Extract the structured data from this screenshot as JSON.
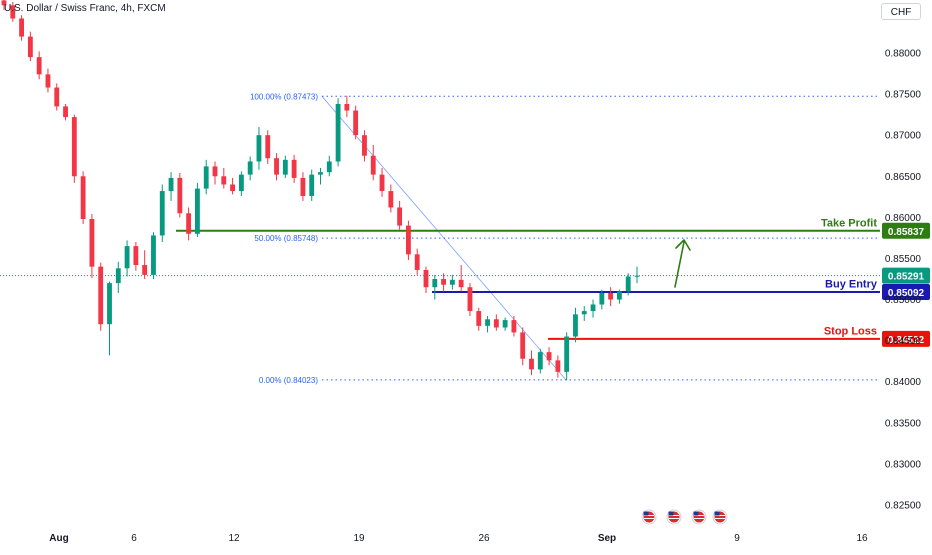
{
  "header": {
    "symbol_title": "U.S. Dollar / Swiss Franc, 4h, FXCM",
    "currency_button": "CHF"
  },
  "chart_data": {
    "type": "candlestick",
    "y_axis_ticks": [
      "0.88000",
      "0.87500",
      "0.87000",
      "0.86500",
      "0.86000",
      "0.85500",
      "0.85000",
      "0.84500",
      "0.84000",
      "0.83500",
      "0.83000",
      "0.82500"
    ],
    "x_axis_ticks": [
      "Aug",
      "6",
      "12",
      "19",
      "26",
      "Sep",
      "9",
      "16"
    ],
    "ylim": [
      0.824,
      0.8866
    ],
    "colors": {
      "up": "#089981",
      "down": "#f23645"
    },
    "candles": [
      [
        0.8864,
        0.8871,
        0.8852,
        0.8858
      ],
      [
        0.8858,
        0.8862,
        0.8838,
        0.8842
      ],
      [
        0.8842,
        0.8846,
        0.8815,
        0.882
      ],
      [
        0.882,
        0.8826,
        0.879,
        0.8795
      ],
      [
        0.8795,
        0.8802,
        0.8768,
        0.8774
      ],
      [
        0.8774,
        0.8781,
        0.8752,
        0.8758
      ],
      [
        0.8758,
        0.8763,
        0.873,
        0.8735
      ],
      [
        0.8735,
        0.8738,
        0.8718,
        0.8722
      ],
      [
        0.8722,
        0.8725,
        0.8642,
        0.865
      ],
      [
        0.865,
        0.8656,
        0.8592,
        0.8598
      ],
      [
        0.8598,
        0.8604,
        0.8526,
        0.854
      ],
      [
        0.854,
        0.8545,
        0.8462,
        0.847
      ],
      [
        0.847,
        0.8522,
        0.8432,
        0.852
      ],
      [
        0.852,
        0.8546,
        0.8508,
        0.8538
      ],
      [
        0.8538,
        0.8572,
        0.8528,
        0.8565
      ],
      [
        0.8565,
        0.857,
        0.8535,
        0.8542
      ],
      [
        0.8542,
        0.856,
        0.8525,
        0.853
      ],
      [
        0.853,
        0.8582,
        0.8525,
        0.8578
      ],
      [
        0.8578,
        0.864,
        0.857,
        0.8632
      ],
      [
        0.8632,
        0.8655,
        0.862,
        0.8648
      ],
      [
        0.8648,
        0.8654,
        0.86,
        0.8605
      ],
      [
        0.8605,
        0.8612,
        0.8572,
        0.858
      ],
      [
        0.858,
        0.8642,
        0.8576,
        0.8635
      ],
      [
        0.8635,
        0.867,
        0.8628,
        0.8662
      ],
      [
        0.8662,
        0.8668,
        0.864,
        0.865
      ],
      [
        0.865,
        0.866,
        0.8635,
        0.864
      ],
      [
        0.864,
        0.8648,
        0.8628,
        0.8632
      ],
      [
        0.8632,
        0.8656,
        0.8626,
        0.8652
      ],
      [
        0.8652,
        0.8674,
        0.8645,
        0.8668
      ],
      [
        0.8668,
        0.871,
        0.8658,
        0.87
      ],
      [
        0.87,
        0.8706,
        0.8665,
        0.8672
      ],
      [
        0.8672,
        0.8678,
        0.8645,
        0.8652
      ],
      [
        0.8652,
        0.8675,
        0.8648,
        0.867
      ],
      [
        0.867,
        0.8676,
        0.8642,
        0.8648
      ],
      [
        0.8648,
        0.8655,
        0.862,
        0.8626
      ],
      [
        0.8626,
        0.8658,
        0.862,
        0.8652
      ],
      [
        0.8652,
        0.866,
        0.864,
        0.8655
      ],
      [
        0.8655,
        0.8675,
        0.865,
        0.8668
      ],
      [
        0.8668,
        0.8745,
        0.8662,
        0.8738
      ],
      [
        0.8738,
        0.8748,
        0.8722,
        0.873
      ],
      [
        0.873,
        0.8736,
        0.8695,
        0.87
      ],
      [
        0.87,
        0.8706,
        0.8668,
        0.8675
      ],
      [
        0.8675,
        0.8688,
        0.8645,
        0.8652
      ],
      [
        0.8652,
        0.866,
        0.8625,
        0.8632
      ],
      [
        0.8632,
        0.864,
        0.8606,
        0.8612
      ],
      [
        0.8612,
        0.862,
        0.8585,
        0.859
      ],
      [
        0.859,
        0.8596,
        0.8548,
        0.8555
      ],
      [
        0.8555,
        0.8562,
        0.853,
        0.8536
      ],
      [
        0.8536,
        0.854,
        0.8508,
        0.8515
      ],
      [
        0.8515,
        0.853,
        0.85,
        0.8525
      ],
      [
        0.8525,
        0.8532,
        0.851,
        0.8518
      ],
      [
        0.8518,
        0.853,
        0.8512,
        0.8524
      ],
      [
        0.8524,
        0.8542,
        0.851,
        0.8515
      ],
      [
        0.8515,
        0.852,
        0.848,
        0.8486
      ],
      [
        0.8486,
        0.849,
        0.8462,
        0.8468
      ],
      [
        0.8468,
        0.848,
        0.846,
        0.8476
      ],
      [
        0.8476,
        0.8482,
        0.8462,
        0.8466
      ],
      [
        0.8466,
        0.8478,
        0.8462,
        0.8475
      ],
      [
        0.8475,
        0.848,
        0.8455,
        0.846
      ],
      [
        0.846,
        0.8466,
        0.842,
        0.8428
      ],
      [
        0.8428,
        0.8438,
        0.8408,
        0.8415
      ],
      [
        0.8415,
        0.844,
        0.841,
        0.8436
      ],
      [
        0.8436,
        0.8442,
        0.842,
        0.8426
      ],
      [
        0.8426,
        0.8432,
        0.8405,
        0.8412
      ],
      [
        0.8412,
        0.846,
        0.8402,
        0.8455
      ],
      [
        0.8455,
        0.849,
        0.8448,
        0.8482
      ],
      [
        0.8482,
        0.8492,
        0.8474,
        0.8486
      ],
      [
        0.8486,
        0.85,
        0.8478,
        0.8494
      ],
      [
        0.8494,
        0.8512,
        0.8488,
        0.8508
      ],
      [
        0.8508,
        0.8515,
        0.8492,
        0.85
      ],
      [
        0.85,
        0.8512,
        0.8495,
        0.851
      ],
      [
        0.851,
        0.8532,
        0.8505,
        0.8528
      ],
      [
        0.8528,
        0.854,
        0.852,
        0.8529
      ]
    ],
    "fibonacci": [
      {
        "label": "100.00% (0.87473)",
        "price": 0.87473
      },
      {
        "label": "50.00% (0.85748)",
        "price": 0.85748
      },
      {
        "label": "0.00% (0.84023)",
        "price": 0.84023
      }
    ],
    "levels": [
      {
        "name": "Take Profit",
        "price": 0.85837,
        "price_label": "0.85837",
        "color": "#2e7d12"
      },
      {
        "name": "Buy Entry",
        "price": 0.85092,
        "price_label": "0.85092",
        "color": "#1a1ab0"
      },
      {
        "name": "Stop Loss",
        "price": 0.84522,
        "price_label": "0.84522",
        "color": "#e8140c"
      }
    ],
    "current_price": {
      "price": 0.85291,
      "price_label": "0.85291",
      "color": "#089981"
    },
    "event_icons": [
      "us-flag-icon",
      "us-flag-icon",
      "us-flag-icon",
      "us-flag-icon"
    ]
  }
}
